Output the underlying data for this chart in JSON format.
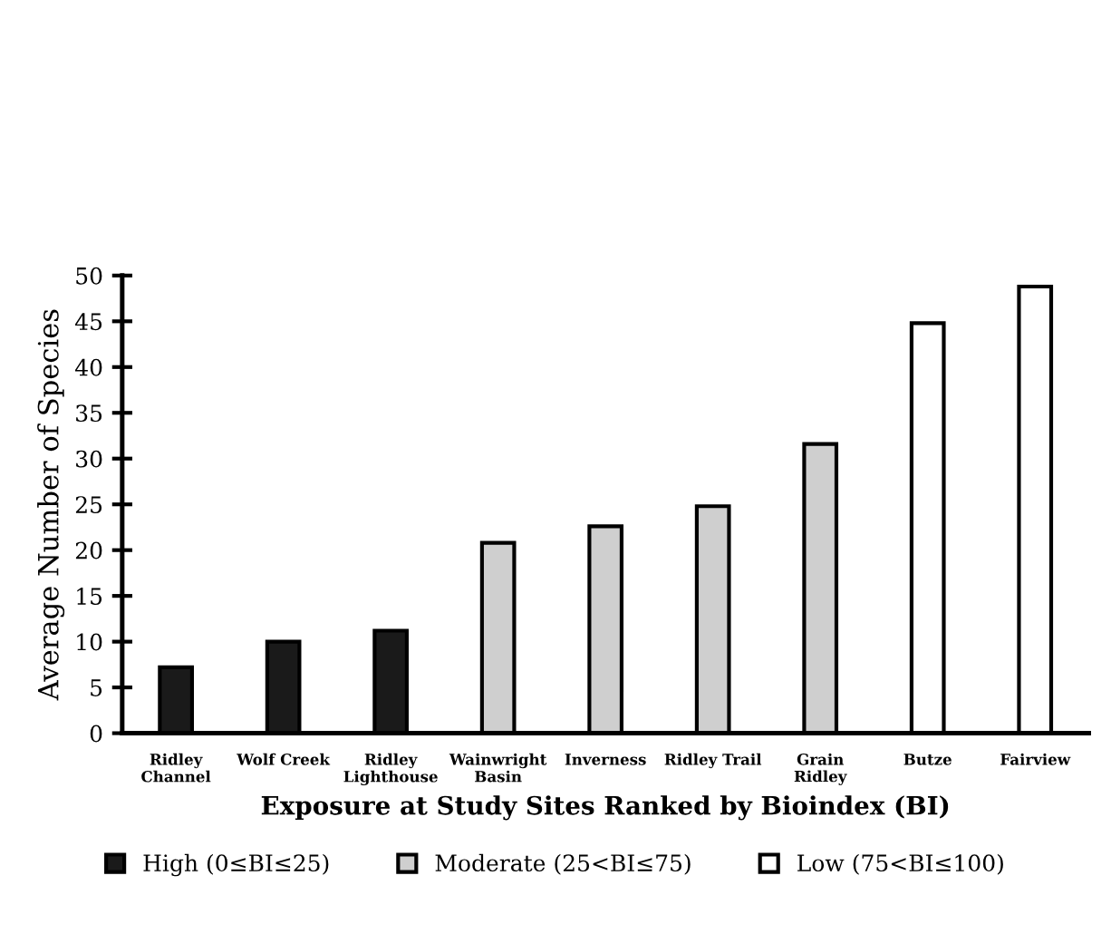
{
  "chart_data": {
    "type": "bar",
    "xlabel": "Exposure at Study Sites Ranked by Bioindex (BI)",
    "ylabel": "Average Number of Species",
    "categories": [
      "Ridley\nChannel",
      "Wolf Creek",
      "Ridley\nLighthouse",
      "Wainwright\nBasin",
      "Inverness",
      "Ridley Trail",
      "Grain\nRidley",
      "Butze",
      "Fairview"
    ],
    "series": [
      {
        "name": "High (0≤BI≤25)",
        "color": "#1a1a1a",
        "values": [
          7.2,
          10,
          11.2,
          null,
          null,
          null,
          null,
          null,
          null
        ]
      },
      {
        "name": "Moderate (25<BI≤75)",
        "color": "#cfcfcf",
        "values": [
          null,
          null,
          null,
          20.8,
          22.6,
          24.8,
          31.6,
          null,
          null
        ]
      },
      {
        "name": "Low (75<BI≤100)",
        "color": "#ffffff",
        "values": [
          null,
          null,
          null,
          null,
          null,
          null,
          null,
          44.8,
          48.8
        ]
      }
    ],
    "ylim": [
      0,
      50
    ],
    "yticks": [
      0,
      5,
      10,
      15,
      20,
      25,
      30,
      35,
      40,
      45,
      50
    ],
    "grid": false,
    "legend": "bottom"
  }
}
